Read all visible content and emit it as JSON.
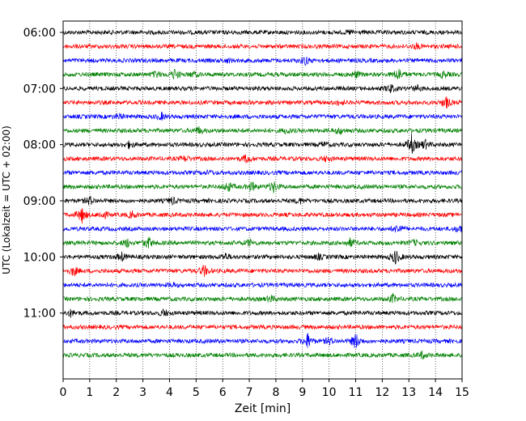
{
  "chart_data": {
    "type": "line",
    "subtype": "helicorder",
    "xlabel": "Zeit  [min]",
    "ylabel": "UTC (Lokalzeit = UTC + 02:00)",
    "xlim": [
      0,
      15
    ],
    "x_ticks": [
      "0",
      "1",
      "2",
      "3",
      "4",
      "5",
      "6",
      "7",
      "8",
      "9",
      "10",
      "11",
      "12",
      "13",
      "14",
      "15"
    ],
    "y_tick_labels": [
      "06:00",
      "07:00",
      "08:00",
      "09:00",
      "10:00",
      "11:00"
    ],
    "grid": "vertical dotted at each minute",
    "trace_colors": [
      "#000000",
      "#ff0000",
      "#0000ff",
      "#008000"
    ],
    "rows": [
      {
        "start": "06:00",
        "color": "#000000",
        "events": [
          [
            10.8,
            2
          ]
        ]
      },
      {
        "start": "06:15",
        "color": "#ff0000",
        "events": [
          [
            13.3,
            3
          ]
        ]
      },
      {
        "start": "06:30",
        "color": "#0000ff",
        "events": [
          [
            9.1,
            5
          ],
          [
            6.2,
            2
          ]
        ]
      },
      {
        "start": "06:45",
        "color": "#008000",
        "events": [
          [
            3.5,
            4
          ],
          [
            4.2,
            6
          ],
          [
            4.9,
            3
          ],
          [
            11.0,
            4
          ],
          [
            12.6,
            8
          ],
          [
            14.3,
            4
          ]
        ]
      },
      {
        "start": "07:00",
        "color": "#000000",
        "events": [
          [
            12.3,
            5
          ],
          [
            13.3,
            3
          ]
        ]
      },
      {
        "start": "07:15",
        "color": "#ff0000",
        "events": [
          [
            10.4,
            3
          ],
          [
            14.4,
            7
          ]
        ]
      },
      {
        "start": "07:30",
        "color": "#0000ff",
        "events": [
          [
            2.1,
            3
          ],
          [
            3.7,
            4
          ]
        ]
      },
      {
        "start": "07:45",
        "color": "#008000",
        "events": [
          [
            5.1,
            4
          ],
          [
            8.4,
            3
          ],
          [
            10.4,
            4
          ]
        ]
      },
      {
        "start": "08:00",
        "color": "#000000",
        "events": [
          [
            2.5,
            4
          ],
          [
            9.8,
            3
          ],
          [
            13.1,
            12
          ],
          [
            13.6,
            6
          ]
        ]
      },
      {
        "start": "08:15",
        "color": "#ff0000",
        "events": [
          [
            4.6,
            3
          ],
          [
            6.9,
            5
          ],
          [
            9.9,
            3
          ]
        ]
      },
      {
        "start": "08:30",
        "color": "#0000ff",
        "events": [
          [
            5.5,
            2
          ]
        ]
      },
      {
        "start": "08:45",
        "color": "#008000",
        "events": [
          [
            6.2,
            6
          ],
          [
            7.1,
            5
          ],
          [
            7.9,
            7
          ]
        ]
      },
      {
        "start": "09:00",
        "color": "#000000",
        "events": [
          [
            1.0,
            5
          ],
          [
            4.1,
            4
          ],
          [
            8.9,
            3
          ]
        ]
      },
      {
        "start": "09:15",
        "color": "#ff0000",
        "events": [
          [
            0.7,
            10
          ],
          [
            1.5,
            5
          ],
          [
            2.6,
            4
          ]
        ]
      },
      {
        "start": "09:30",
        "color": "#0000ff",
        "events": [
          [
            12.6,
            6
          ],
          [
            14.9,
            4
          ]
        ]
      },
      {
        "start": "09:45",
        "color": "#008000",
        "events": [
          [
            2.4,
            5
          ],
          [
            3.2,
            7
          ],
          [
            7.0,
            4
          ],
          [
            10.8,
            5
          ],
          [
            13.2,
            3
          ]
        ]
      },
      {
        "start": "10:00",
        "color": "#000000",
        "events": [
          [
            2.2,
            5
          ],
          [
            6.1,
            4
          ],
          [
            9.6,
            3
          ],
          [
            12.5,
            9
          ]
        ]
      },
      {
        "start": "10:15",
        "color": "#ff0000",
        "events": [
          [
            0.4,
            6
          ],
          [
            5.3,
            7
          ]
        ]
      },
      {
        "start": "10:30",
        "color": "#0000ff",
        "events": [
          [
            4.1,
            2
          ]
        ]
      },
      {
        "start": "10:45",
        "color": "#008000",
        "events": [
          [
            7.8,
            4
          ],
          [
            12.4,
            5
          ]
        ]
      },
      {
        "start": "11:00",
        "color": "#000000",
        "events": [
          [
            0.3,
            4
          ],
          [
            3.8,
            4
          ]
        ]
      },
      {
        "start": "11:15",
        "color": "#ff0000",
        "events": []
      },
      {
        "start": "11:30",
        "color": "#0000ff",
        "events": [
          [
            9.2,
            9
          ],
          [
            11.0,
            10
          ],
          [
            10.0,
            4
          ]
        ]
      },
      {
        "start": "11:45",
        "color": "#008000",
        "events": [
          [
            13.5,
            4
          ]
        ]
      }
    ]
  }
}
